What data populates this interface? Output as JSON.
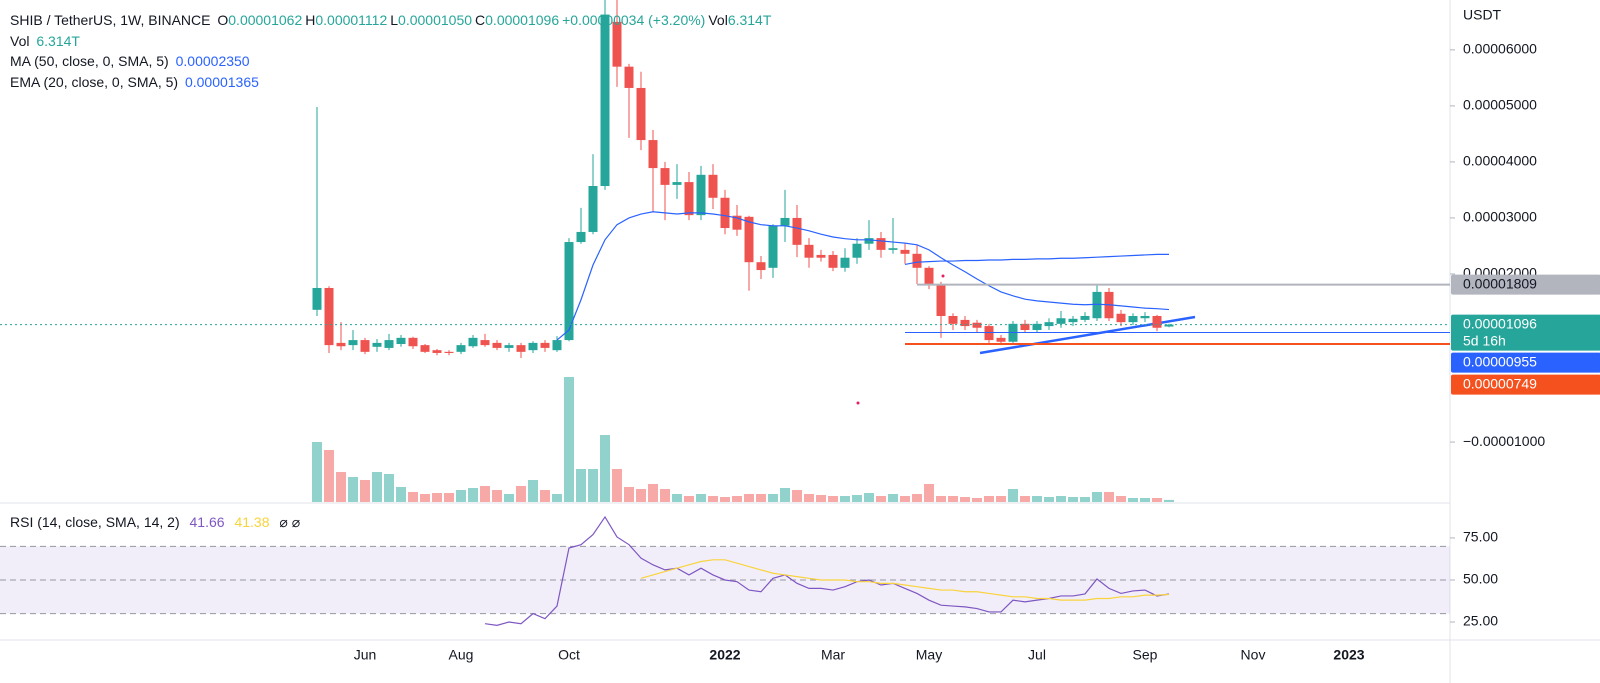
{
  "chart_data": {
    "type": "candlestick",
    "title": "SHIB / TetherUS, 1W, BINANCE",
    "header": {
      "ohlc": [
        {
          "key": "O",
          "value": "0.00001062"
        },
        {
          "key": "H",
          "value": "0.00001112"
        },
        {
          "key": "L",
          "value": "0.00001050"
        },
        {
          "key": "C",
          "value": "0.00001096"
        }
      ],
      "change": "+0.00000034 (+3.20%)",
      "vol_key": "Vol",
      "vol": "6.314T"
    },
    "y_unit": "USDT",
    "up_color": "#26a69a",
    "down_color": "#ef5350",
    "categories": [
      null,
      null,
      null,
      null,
      "Jun",
      null,
      null,
      null,
      null,
      null,
      null,
      null,
      "Aug",
      null,
      null,
      null,
      null,
      null,
      null,
      null,
      null,
      "Oct",
      null,
      null,
      null,
      null,
      null,
      null,
      null,
      null,
      null,
      null,
      null,
      null,
      "2022",
      null,
      null,
      null,
      null,
      null,
      null,
      null,
      null,
      "Mar",
      null,
      null,
      null,
      null,
      null,
      null,
      null,
      "May",
      null,
      null,
      null,
      null,
      null,
      null,
      null,
      null,
      "Jul",
      null,
      null,
      null,
      null,
      null,
      null,
      null,
      null,
      "Sep",
      null,
      null,
      null,
      null,
      null,
      null,
      null,
      null,
      "Nov",
      null,
      null,
      null,
      null,
      null,
      null,
      null,
      "2023"
    ],
    "open": [
      1.36e-05,
      1.75e-05,
      7.7e-06,
      7.3e-06,
      8.2e-06,
      7e-06,
      6.8e-06,
      7.5e-06,
      8.6e-06,
      7.3e-06,
      6.4e-06,
      6.1e-06,
      6.1e-06,
      7.1e-06,
      8.2e-06,
      7.7e-06,
      6.8e-06,
      7.3e-06,
      6.4e-06,
      7.7e-06,
      6.4e-06,
      8.2e-06,
      2.57e-05,
      2.75e-05,
      3.57e-05,
      6.5e-05,
      5.7e-05,
      5.32e-05,
      4.39e-05,
      3.89e-05,
      3.59e-05,
      3.64e-05,
      3.05e-05,
      3.77e-05,
      3.36e-05,
      3.04e-05,
      3.02e-05,
      2.21e-05,
      2.11e-05,
      2.86e-05,
      3e-05,
      2.52e-05,
      2.34e-05,
      2.34e-05,
      2.11e-05,
      2.29e-05,
      2.54e-05,
      2.64e-05,
      2.43e-05,
      2.43e-05,
      2.36e-05,
      2.11e-05,
      1.8e-05,
      1.25e-05,
      1.18e-05,
      1.13e-05,
      1.07e-05,
      8.6e-06,
      7.9e-06,
      1.11e-05,
      1e-05,
      1.07e-05,
      1.11e-05,
      1.14e-05,
      1.18e-05,
      1.21e-05,
      1.68e-05,
      1.29e-05,
      1.14e-05,
      1.21e-05,
      1.25e-05,
      1.062e-05,
      null,
      null,
      null,
      null,
      null,
      null,
      null,
      null,
      null,
      null,
      null,
      null,
      null,
      null,
      null
    ],
    "high": [
      4.98e-05,
      1.78e-05,
      1.14e-05,
      1e-05,
      8.6e-06,
      8.4e-06,
      9.3e-06,
      9.1e-06,
      8.8e-06,
      7.5e-06,
      6.6e-06,
      6.4e-06,
      7.7e-06,
      9.1e-06,
      9.3e-06,
      8.2e-06,
      7.7e-06,
      7.7e-06,
      8e-06,
      8.2e-06,
      8.9e-06,
      2.64e-05,
      3.18e-05,
      4.14e-05,
      7e-05,
      7e-05,
      5.75e-05,
      5.61e-05,
      4.57e-05,
      4e-05,
      3.96e-05,
      3.82e-05,
      3.93e-05,
      3.96e-05,
      3.5e-05,
      3.23e-05,
      3.04e-05,
      2.32e-05,
      2.89e-05,
      3.5e-05,
      3.23e-05,
      2.64e-05,
      2.43e-05,
      2.41e-05,
      2.46e-05,
      2.64e-05,
      2.96e-05,
      2.75e-05,
      3e-05,
      2.54e-05,
      2.52e-05,
      2.14e-05,
      1.86e-05,
      1.3e-05,
      1.25e-05,
      1.18e-05,
      1.11e-05,
      9.1e-06,
      1.16e-05,
      1.18e-05,
      1.16e-05,
      1.21e-05,
      1.34e-05,
      1.25e-05,
      1.32e-05,
      1.82e-05,
      1.75e-05,
      1.36e-05,
      1.3e-05,
      1.32e-05,
      1.27e-05,
      1.112e-05,
      null,
      null,
      null,
      null,
      null,
      null,
      null,
      null,
      null,
      null,
      null,
      null,
      null,
      null,
      null
    ],
    "low": [
      1.25e-05,
      5.9e-06,
      6.4e-06,
      6.4e-06,
      5.7e-06,
      6.1e-06,
      6.4e-06,
      7e-06,
      6.6e-06,
      5.9e-06,
      5.5e-06,
      5.5e-06,
      5.7e-06,
      6.8e-06,
      7e-06,
      6.4e-06,
      6.1e-06,
      5e-06,
      5.9e-06,
      6.1e-06,
      6.1e-06,
      8e-06,
      2.54e-05,
      2.71e-05,
      3.5e-05,
      5.34e-05,
      4.43e-05,
      4.21e-05,
      3.11e-05,
      2.96e-05,
      3.34e-05,
      2.96e-05,
      2.96e-05,
      3.16e-05,
      2.71e-05,
      2.68e-05,
      1.7e-05,
      1.91e-05,
      1.93e-05,
      2.57e-05,
      2.3e-05,
      2.11e-05,
      2.22e-05,
      2.05e-05,
      2.04e-05,
      2.18e-05,
      2.43e-05,
      2.29e-05,
      2.36e-05,
      2.18e-05,
      1.82e-05,
      1.73e-05,
      8.6e-06,
      1e-05,
      1e-05,
      9.6e-06,
      7.7e-06,
      7.3e-06,
      7.7e-06,
      9.6e-06,
      9.5e-06,
      1e-05,
      1.04e-05,
      1.07e-05,
      1.14e-05,
      1.16e-05,
      1.16e-05,
      1.07e-05,
      1.09e-05,
      1.14e-05,
      9.8e-06,
      1.05e-05,
      null,
      null,
      null,
      null,
      null,
      null,
      null,
      null,
      null,
      null,
      null,
      null,
      null,
      null,
      null
    ],
    "close": [
      1.75e-05,
      7.3e-06,
      7.1e-06,
      8.2e-06,
      6.1e-06,
      7.7e-06,
      8.2e-06,
      8.6e-06,
      7.1e-06,
      6.1e-06,
      5.9e-06,
      5.9e-06,
      7.3e-06,
      8.6e-06,
      7.3e-06,
      6.8e-06,
      7.3e-06,
      6.1e-06,
      7.7e-06,
      6.8e-06,
      8.2e-06,
      2.57e-05,
      2.75e-05,
      3.57e-05,
      6.63e-05,
      5.7e-05,
      5.32e-05,
      4.39e-05,
      3.89e-05,
      3.59e-05,
      3.64e-05,
      3.05e-05,
      3.77e-05,
      3.36e-05,
      2.82e-05,
      2.79e-05,
      2.21e-05,
      2.07e-05,
      2.86e-05,
      3e-05,
      2.52e-05,
      2.29e-05,
      2.29e-05,
      2.11e-05,
      2.29e-05,
      2.54e-05,
      2.64e-05,
      2.43e-05,
      2.46e-05,
      2.36e-05,
      2.11e-05,
      1.8e-05,
      1.25e-05,
      1.11e-05,
      1.07e-05,
      1.04e-05,
      8.2e-06,
      7.9e-06,
      1.11e-05,
      1e-05,
      1.11e-05,
      1.14e-05,
      1.21e-05,
      1.2e-05,
      1.25e-05,
      1.68e-05,
      1.21e-05,
      1.14e-05,
      1.25e-05,
      1.25e-05,
      1.04e-05,
      1.096e-05,
      null,
      null,
      null,
      null,
      null,
      null,
      null,
      null,
      null,
      null,
      null,
      null,
      null,
      null,
      null
    ],
    "volume": [
      180,
      156,
      90,
      75,
      66,
      90,
      84,
      45,
      30,
      24,
      27,
      27,
      36,
      42,
      48,
      36,
      24,
      48,
      66,
      36,
      24,
      375,
      99,
      99,
      201,
      99,
      45,
      39,
      54,
      39,
      24,
      18,
      24,
      18,
      15,
      18,
      24,
      24,
      24,
      42,
      36,
      24,
      21,
      18,
      18,
      21,
      27,
      18,
      24,
      18,
      24,
      54,
      18,
      18,
      15,
      12,
      18,
      18,
      39,
      18,
      18,
      15,
      18,
      15,
      15,
      30,
      30,
      18,
      12,
      12,
      12,
      6.314,
      null,
      null,
      null,
      null,
      null,
      null,
      null,
      null,
      null,
      null,
      null,
      null,
      null,
      null,
      null
    ],
    "lines": [
      {
        "name": "MA (50, close, 0, SMA, 5)",
        "value_label": "0.00002350",
        "color": "#2962ff",
        "values": [
          null,
          null,
          null,
          null,
          null,
          null,
          null,
          null,
          null,
          null,
          null,
          null,
          null,
          null,
          null,
          null,
          null,
          null,
          null,
          null,
          null,
          null,
          null,
          null,
          null,
          null,
          null,
          null,
          null,
          null,
          null,
          null,
          null,
          null,
          null,
          null,
          null,
          null,
          null,
          null,
          null,
          null,
          null,
          null,
          null,
          null,
          null,
          null,
          null,
          2.17e-05,
          2.21e-05,
          2.22e-05,
          2.23e-05,
          2.23e-05,
          2.24e-05,
          2.24e-05,
          2.25e-05,
          2.25e-05,
          2.26e-05,
          2.26e-05,
          2.27e-05,
          2.27e-05,
          2.28e-05,
          2.28e-05,
          2.29e-05,
          2.3e-05,
          2.31e-05,
          2.32e-05,
          2.33e-05,
          2.34e-05,
          2.35e-05,
          2.35e-05,
          null,
          null,
          null,
          null,
          null,
          null,
          null,
          null,
          null,
          null,
          null,
          null,
          null,
          null,
          null
        ]
      },
      {
        "name": "EMA (20, close, 0, SMA, 5)",
        "value_label": "0.00001365",
        "color": "#2962ff",
        "values": [
          null,
          null,
          null,
          null,
          null,
          null,
          null,
          null,
          null,
          null,
          null,
          null,
          null,
          null,
          null,
          null,
          null,
          null,
          null,
          null,
          8.2e-06,
          1e-05,
          1.54e-05,
          2.16e-05,
          2.61e-05,
          2.88e-05,
          3e-05,
          3.07e-05,
          3.11e-05,
          3.09e-05,
          3.07e-05,
          3.09e-05,
          3.09e-05,
          3.07e-05,
          3.04e-05,
          3e-05,
          2.93e-05,
          2.88e-05,
          2.86e-05,
          2.86e-05,
          2.82e-05,
          2.77e-05,
          2.71e-05,
          2.66e-05,
          2.63e-05,
          2.61e-05,
          2.61e-05,
          2.59e-05,
          2.57e-05,
          2.55e-05,
          2.52e-05,
          2.43e-05,
          2.29e-05,
          2.16e-05,
          2.04e-05,
          1.91e-05,
          1.79e-05,
          1.68e-05,
          1.61e-05,
          1.55e-05,
          1.52e-05,
          1.5e-05,
          1.48e-05,
          1.46e-05,
          1.45e-05,
          1.46e-05,
          1.45e-05,
          1.43e-05,
          1.41e-05,
          1.39e-05,
          1.38e-05,
          1.365e-05,
          null,
          null,
          null,
          null,
          null,
          null,
          null,
          null,
          null,
          null,
          null,
          null,
          null,
          null,
          null
        ]
      }
    ],
    "ylim": [
      -2.07e-05,
      6.89e-05
    ],
    "yticks": [
      {
        "value": 6e-05,
        "label": "0.00006000"
      },
      {
        "value": 5e-05,
        "label": "0.00005000"
      },
      {
        "value": 4e-05,
        "label": "0.00004000"
      },
      {
        "value": 3e-05,
        "label": "0.00003000"
      },
      {
        "value": 2e-05,
        "label": "0.00002000"
      },
      {
        "value": -1e-05,
        "label": "−0.00001000"
      }
    ],
    "price_lines": [
      {
        "value": 1.809e-05,
        "color": "#b2b5be",
        "text_color": "#131722"
      },
      {
        "value": 1.096e-05,
        "color": "#26a69a",
        "text_color": "#ffffff",
        "note": "5d 16h"
      },
      {
        "value": 9.55e-06,
        "color": "#2962ff",
        "text_color": "#ffffff"
      },
      {
        "value": 7.49e-06,
        "color": "#f4511e",
        "text_color": "#ffffff"
      }
    ],
    "rsi": {
      "name": "RSI (14, close, SMA, 14, 2)",
      "extra": "⌀ ⌀",
      "ylim": [
        14.3,
        94.6
      ],
      "yticks": [
        {
          "value": 75,
          "label": "75.00"
        },
        {
          "value": 50,
          "label": "50.00"
        },
        {
          "value": 25,
          "label": "25.00"
        }
      ],
      "levels": [
        70,
        50,
        30
      ],
      "band_color": "#7e57c2",
      "series": [
        {
          "value_label": "41.66",
          "color": "#7e57c2",
          "values": [
            null,
            null,
            null,
            null,
            null,
            null,
            null,
            null,
            null,
            null,
            null,
            null,
            null,
            null,
            24,
            23,
            25,
            24,
            30,
            27,
            34.5,
            69,
            71,
            77,
            87.5,
            75.6,
            71,
            63,
            59,
            56,
            57,
            53,
            57,
            53,
            50,
            49,
            44,
            43,
            51,
            53,
            48,
            45,
            45,
            44,
            46,
            49,
            50,
            47,
            48,
            45,
            42,
            38,
            35,
            34.5,
            34,
            33,
            31,
            31,
            38,
            37,
            38,
            39,
            40.5,
            40.5,
            41.7,
            50.6,
            45,
            42,
            43.5,
            44,
            40.5,
            41.66,
            null,
            null,
            null,
            null,
            null,
            null,
            null,
            null,
            null,
            null,
            null,
            null,
            null,
            null,
            null
          ]
        },
        {
          "value_label": "41.38",
          "color": "#f9d33c",
          "values": [
            null,
            null,
            null,
            null,
            null,
            null,
            null,
            null,
            null,
            null,
            null,
            null,
            null,
            null,
            null,
            null,
            null,
            null,
            null,
            null,
            null,
            null,
            null,
            null,
            null,
            null,
            null,
            51,
            53,
            55,
            57,
            59,
            61,
            62,
            62,
            60,
            58,
            56,
            54,
            53,
            52,
            51,
            50,
            50,
            50,
            49,
            49,
            48,
            48,
            47,
            46,
            45,
            44,
            44,
            43,
            43,
            42,
            41,
            40,
            40,
            39,
            39,
            38,
            38,
            38,
            39,
            39,
            40,
            40,
            41,
            41,
            41.38,
            null,
            null,
            null,
            null,
            null,
            null,
            null,
            null,
            null,
            null,
            null,
            null,
            null,
            null,
            null
          ]
        }
      ]
    }
  }
}
